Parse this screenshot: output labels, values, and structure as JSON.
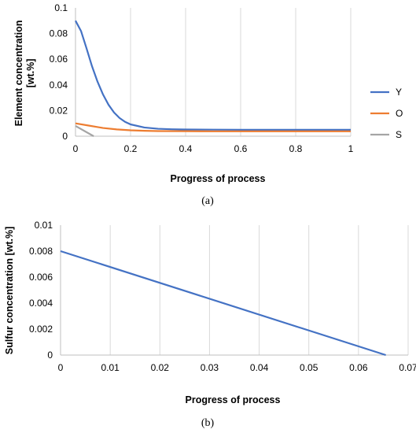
{
  "chart_data": [
    {
      "type": "line",
      "panel_label": "(a)",
      "xlabel": "Progress of process",
      "ylabel": "Element concentration [wt.%]",
      "ylabel_lines": [
        "Element concentration",
        "[wt.%]"
      ],
      "xlim": [
        0,
        1
      ],
      "ylim": [
        0,
        0.1
      ],
      "x_ticks": [
        0,
        0.2,
        0.4,
        0.6,
        0.8,
        1
      ],
      "x_tick_labels": [
        "0",
        "0.2",
        "0.4",
        "0.6",
        "0.8",
        "1"
      ],
      "y_ticks": [
        0,
        0.02,
        0.04,
        0.06,
        0.08,
        0.1
      ],
      "y_tick_labels": [
        "0",
        "0.02",
        "0.04",
        "0.06",
        "0.08",
        "0.1"
      ],
      "grid": "vertical",
      "legend": "right",
      "series": [
        {
          "name": "Y",
          "color": "#4472c4",
          "x": [
            0,
            0.02,
            0.04,
            0.06,
            0.08,
            0.1,
            0.12,
            0.14,
            0.16,
            0.18,
            0.2,
            0.25,
            0.3,
            0.35,
            0.4,
            0.5,
            0.6,
            0.7,
            0.8,
            0.9,
            1.0
          ],
          "y": [
            0.09,
            0.082,
            0.0685,
            0.0545,
            0.0425,
            0.0325,
            0.0245,
            0.0185,
            0.0142,
            0.0112,
            0.0092,
            0.0068,
            0.0058,
            0.0054,
            0.0052,
            0.0051,
            0.005,
            0.005,
            0.005,
            0.005,
            0.005
          ]
        },
        {
          "name": "O",
          "color": "#ed7d31",
          "x": [
            0,
            0.05,
            0.1,
            0.15,
            0.2,
            0.25,
            0.3,
            0.4,
            0.5,
            0.6,
            0.7,
            0.8,
            0.9,
            1.0
          ],
          "y": [
            0.01,
            0.0082,
            0.0064,
            0.0053,
            0.0046,
            0.0042,
            0.004,
            0.0039,
            0.0038,
            0.0038,
            0.0038,
            0.0038,
            0.0038,
            0.0038
          ]
        },
        {
          "name": "S",
          "color": "#a5a5a5",
          "x": [
            0,
            0.066
          ],
          "y": [
            0.008,
            0
          ]
        }
      ]
    },
    {
      "type": "line",
      "panel_label": "(b)",
      "xlabel": "Progress of process",
      "ylabel": "Sulfur concentration [wt.%]",
      "xlim": [
        0,
        0.07
      ],
      "ylim": [
        0,
        0.01
      ],
      "x_ticks": [
        0,
        0.01,
        0.02,
        0.03,
        0.04,
        0.05,
        0.06,
        0.07
      ],
      "x_tick_labels": [
        "0",
        "0.01",
        "0.02",
        "0.03",
        "0.04",
        "0.05",
        "0.06",
        "0.07"
      ],
      "y_ticks": [
        0,
        0.002,
        0.004,
        0.006,
        0.008,
        0.01
      ],
      "y_tick_labels": [
        "0",
        "0.002",
        "0.004",
        "0.006",
        "0.008",
        "0.01"
      ],
      "grid": "vertical",
      "legend": "none",
      "series": [
        {
          "color": "#4472c4",
          "x": [
            0,
            0.0655
          ],
          "y": [
            0.008,
            0
          ]
        }
      ]
    }
  ]
}
